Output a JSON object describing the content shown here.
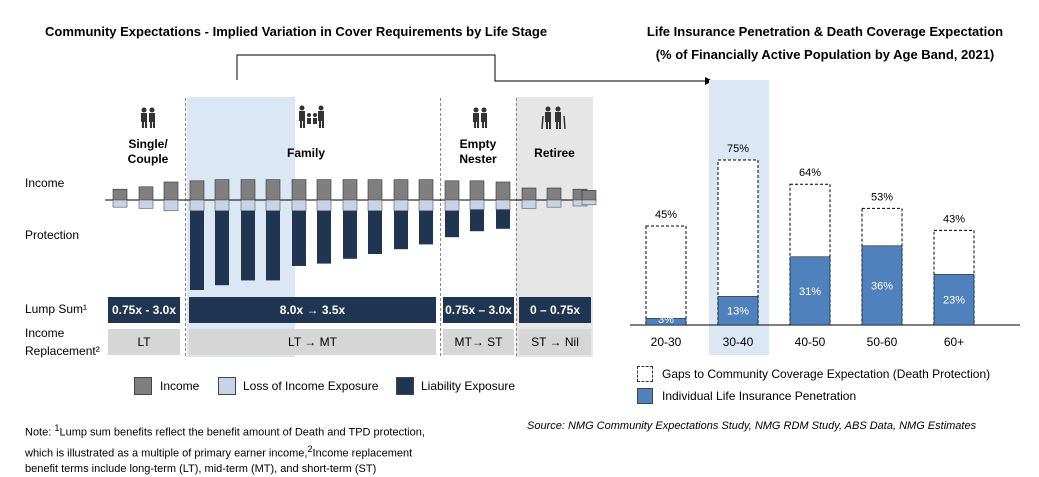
{
  "left": {
    "title": "Community Expectations - Implied Variation in Cover Requirements by Life Stage",
    "row_labels": {
      "income": "Income",
      "protection": "Protection",
      "lump_sum": "Lump Sum¹",
      "income_replacement": "Income Replacement²"
    },
    "stages": [
      {
        "name": "Single/ Couple",
        "icon": "couple-icon"
      },
      {
        "name": "Family",
        "icon": "family-icon"
      },
      {
        "name": "Empty Nester",
        "icon": "couple-icon"
      },
      {
        "name": "Retiree",
        "icon": "elderly-couple-icon"
      }
    ],
    "lump_sum": [
      "0.75x - 3.0x",
      "8.0x → 3.5x",
      "0.75x – 3.0x",
      "0 – 0.75x"
    ],
    "income_replacement": [
      "LT",
      "LT → MT",
      "MT→ ST",
      "ST → Nil"
    ],
    "legend": [
      "Income",
      "Loss of Income Exposure",
      "Liability Exposure"
    ],
    "colors": {
      "income": "#7f7f7f",
      "loss": "#c9d3e6",
      "liability": "#1f3552",
      "family_highlight": "#dce7f5",
      "retiree_bg": "#e6e6e6"
    },
    "series": {
      "income": [
        0.45,
        0.55,
        0.75,
        0.8,
        0.85,
        0.85,
        0.85,
        0.85,
        0.85,
        0.85,
        0.85,
        0.85,
        0.85,
        0.8,
        0.8,
        0.75,
        0.5,
        0.5,
        0.45,
        0.4
      ],
      "loss_of_income": [
        0.3,
        0.35,
        0.45,
        0.45,
        0.45,
        0.45,
        0.45,
        0.45,
        0.45,
        0.45,
        0.45,
        0.45,
        0.45,
        0.45,
        0.4,
        0.4,
        0.35,
        0.3,
        0.25,
        0.2
      ],
      "liability": [
        0,
        0,
        0,
        3.3,
        3.1,
        2.9,
        2.9,
        2.3,
        2.2,
        2.0,
        1.8,
        1.6,
        1.4,
        1.1,
        0.9,
        0.8,
        0,
        0,
        0,
        0
      ]
    }
  },
  "right": {
    "title_line1": "Life Insurance Penetration & Death Coverage Expectation",
    "title_line2": "(% of Financially Active Population by Age Band, 2021)",
    "legend": [
      "Gaps to Community Coverage Expectation (Death Protection)",
      "Individual Life Insurance Penetration"
    ]
  },
  "chart_data": [
    {
      "type": "bar",
      "title": "Life Insurance Penetration & Death Coverage Expectation (% of Financially Active Population by Age Band, 2021)",
      "categories": [
        "20-30",
        "30-40",
        "40-50",
        "50-60",
        "60+"
      ],
      "series": [
        {
          "name": "Individual Life Insurance Penetration",
          "values": [
            3,
            13,
            31,
            36,
            23
          ],
          "labels": [
            "3%",
            "13%",
            "31%",
            "36%",
            "23%"
          ]
        },
        {
          "name": "Gaps to Community Coverage Expectation (Death Protection)",
          "values": [
            42,
            62,
            33,
            17,
            20
          ]
        }
      ],
      "totals": [
        45,
        75,
        64,
        53,
        43
      ],
      "total_labels": [
        "45%",
        "75%",
        "64%",
        "53%",
        "43%"
      ],
      "stacked": true,
      "highlight_category": "30-40",
      "colors": {
        "penetration": "#4f81bd",
        "highlight": "#dce7f5"
      }
    }
  ],
  "note": {
    "prefix": "Note:",
    "text1": "Lump sum benefits reflect the benefit amount of Death and TPD protection,",
    "text2": "which is illustrated as a multiple of primary earner income,",
    "text3": "Income replacement",
    "text4": "benefit terms include long-term (LT), mid-term (MT), and short-term (ST)"
  },
  "source": "Source: NMG Community Expectations Study, NMG RDM Study, ABS Data, NMG Estimates"
}
